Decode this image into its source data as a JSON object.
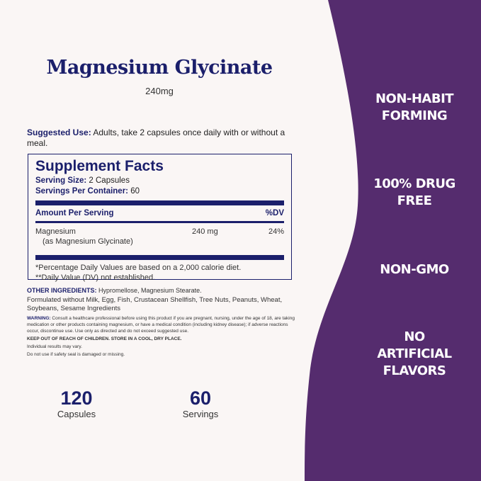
{
  "colors": {
    "panel": "#552c6e",
    "navy": "#1b1f6b",
    "background": "#faf6f5"
  },
  "product": {
    "title": "Magnesium Glycinate",
    "dose": "240mg"
  },
  "suggested_use": {
    "label": "Suggested Use:",
    "text": " Adults, take 2 capsules once daily with or without a meal."
  },
  "facts": {
    "title": "Supplement Facts",
    "serving_size_label": "Serving Size:",
    "serving_size": " 2 Capsules",
    "servings_label": "Servings Per Container:",
    "servings": " 60",
    "amount_header": "Amount Per Serving",
    "dv_header": "%DV",
    "nutrient": {
      "name": "Magnesium",
      "form": "(as Magnesium Glycinate)",
      "amount": "240 mg",
      "dv": "24%"
    },
    "footnote1": "*Percentage Daily Values are based on a 2,000 calorie diet.",
    "footnote2": "**Daily Value (DV) not established."
  },
  "other": {
    "label": "OTHER INGREDIENTS:",
    "ingredients": " Hypromellose, Magnesium Stearate.",
    "allergens": "Formulated without Milk, Egg, Fish, Crustacean Shellfish, Tree Nuts, Peanuts, Wheat, Soybeans, Sesame Ingredients",
    "warning_label": "WARNING:",
    "warning": " Consult a healthcare professional before using this product if you are pregnant, nursing, under the age of 18, are taking medication or other products containing magnesium, or have a medical condition (including kidney disease); if adverse reactions occur, discontinue use. Use only as directed and do not exceed suggested use.",
    "keep_out": "KEEP OUT OF REACH OF CHILDREN. STORE IN A COOL, DRY PLACE.",
    "results": "Individual results may vary.",
    "seal": "Do not use if safety seal is damaged or missing."
  },
  "stats": [
    {
      "num": "120",
      "label": "Capsules"
    },
    {
      "num": "60",
      "label": "Servings"
    }
  ],
  "claims": [
    "NON-HABIT FORMING",
    "100% DRUG FREE",
    "NON-GMO",
    "NO ARTIFICIAL FLAVORS"
  ]
}
